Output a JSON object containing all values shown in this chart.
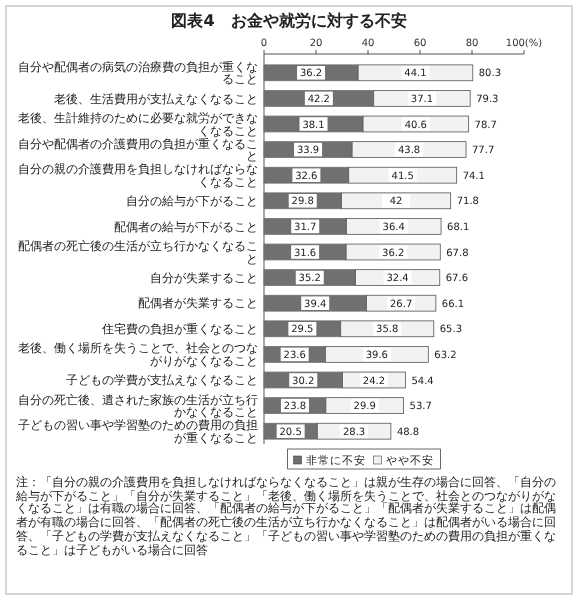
{
  "chart_data": {
    "type": "bar",
    "orientation": "horizontal",
    "stacked": true,
    "title": "図表4　お金や就労に対する不安",
    "categories": [
      "自分や配偶者の病気の治療費の負担が重くなること",
      "老後、生活費用が支払えなくなること",
      "老後、生計維持のために必要な就労ができなくなること",
      "自分や配偶者の介護費用の負担が重くなること",
      "自分の親の介護費用を負担しなければならなくなること",
      "自分の給与が下がること",
      "配偶者の給与が下がること",
      "配偶者の死亡後の生活が立ち行かなくなること",
      "自分が失業すること",
      "配偶者が失業すること",
      "住宅費の負担が重くなること",
      "老後、働く場所を失うことで、社会とのつながりがなくなること",
      "子どもの学費が支払えなくなること",
      "自分の死亡後、遺された家族の生活が立ち行かなくなること",
      "子どもの習い事や学習塾のための費用の負担が重くなること"
    ],
    "series": [
      {
        "name": "非常に不安",
        "color": "#707070",
        "values": [
          36.2,
          42.2,
          38.1,
          33.9,
          32.6,
          29.8,
          31.7,
          31.6,
          35.2,
          39.4,
          29.5,
          23.6,
          30.2,
          23.8,
          20.5
        ]
      },
      {
        "name": "やや不安",
        "color": "#f2f2f2",
        "values": [
          44.1,
          37.1,
          40.6,
          43.8,
          41.5,
          42.0,
          36.4,
          36.2,
          32.4,
          26.7,
          35.8,
          39.6,
          24.2,
          29.9,
          28.3
        ]
      }
    ],
    "data_labels": true,
    "totals": [
      "80.3",
      "79.3",
      "78.7",
      "77.7",
      "74.1",
      "71.8",
      "68.1",
      "67.8",
      "67.6",
      "66.1",
      "65.3",
      "63.2",
      "54.4",
      "53.7",
      "48.8"
    ],
    "xlim": [
      0,
      100
    ],
    "xticks": [
      0,
      20,
      40,
      60,
      80,
      {
        "value": 100,
        "label": "100(%)"
      }
    ],
    "legend": "bottom",
    "annotations": [
      "注：「自分の親の介護費用を負担しなければならなくなること」は親が生存の場合に回答、「自分の給与が下がること」「自分が失業すること」「老後、働く場所を失うことで、社会とのつながりがなくなること」は有職の場合に回答、「配偶者の給与が下がること」「配偶者が失業すること」は配偶者が有職の場合に回答、「配偶者の死亡後の生活が立ち行かなくなること」は配偶者がいる場合に回答、「子どもの学費が支払えなくなること」「子どもの習い事や学習塾のための費用の負担が重くなること」は子どもがいる場合に回答"
    ]
  }
}
